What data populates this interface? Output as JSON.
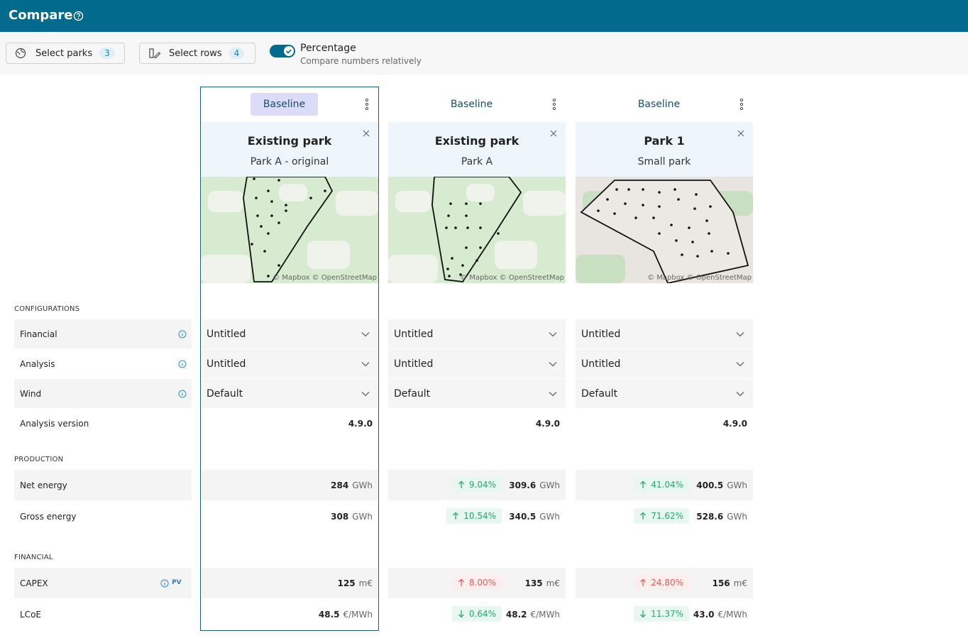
{
  "header": {
    "title": "Compare"
  },
  "toolbar": {
    "select_parks": {
      "label": "Select parks",
      "count": 3
    },
    "select_rows": {
      "label": "Select rows",
      "count": 4
    },
    "percentage": {
      "label": "Percentage",
      "description": "Compare numbers relatively",
      "on": true
    }
  },
  "map_attribution": "© Mapbox © OpenStreetMap",
  "sections": [
    {
      "title": "CONFIGURATIONS",
      "rows": [
        {
          "label": "Financial",
          "info": true
        },
        {
          "label": "Analysis",
          "info": true
        },
        {
          "label": "Wind",
          "info": true
        },
        {
          "label": "Analysis version"
        }
      ]
    },
    {
      "title": "PRODUCTION",
      "rows": [
        {
          "label": "Net energy"
        },
        {
          "label": "Gross energy"
        }
      ]
    },
    {
      "title": "FINANCIAL",
      "rows": [
        {
          "label": "CAPEX",
          "info": true,
          "tag": "PV"
        },
        {
          "label": "LCoE"
        }
      ]
    }
  ],
  "parks": [
    {
      "tag": "Baseline",
      "selected": true,
      "name": "Existing park",
      "subtitle": "Park A - original",
      "cells": [
        [
          {
            "select": "Untitled"
          },
          {
            "select": "Untitled"
          },
          {
            "select": "Default"
          },
          {
            "value": "4.9.0"
          }
        ],
        [
          {
            "value": "284",
            "unit": "GWh"
          },
          {
            "value": "308",
            "unit": "GWh"
          }
        ],
        [
          {
            "value": "125",
            "unit": "m€"
          },
          {
            "value": "48.5",
            "unit": "€/MWh"
          }
        ]
      ]
    },
    {
      "tag": "Baseline",
      "selected": false,
      "name": "Existing park",
      "subtitle": "Park A",
      "cells": [
        [
          {
            "select": "Untitled"
          },
          {
            "select": "Untitled"
          },
          {
            "select": "Default"
          },
          {
            "value": "4.9.0"
          }
        ],
        [
          {
            "value": "309.6",
            "unit": "GWh",
            "change": "9.04%",
            "direction": "up",
            "tone": "positive"
          },
          {
            "value": "340.5",
            "unit": "GWh",
            "change": "10.54%",
            "direction": "up",
            "tone": "positive"
          }
        ],
        [
          {
            "value": "135",
            "unit": "m€",
            "change": "8.00%",
            "direction": "up",
            "tone": "negative"
          },
          {
            "value": "48.2",
            "unit": "€/MWh",
            "change": "0.64%",
            "direction": "down",
            "tone": "positive"
          }
        ]
      ]
    },
    {
      "tag": "Baseline",
      "selected": false,
      "name": "Park 1",
      "subtitle": "Small park",
      "cells": [
        [
          {
            "select": "Untitled"
          },
          {
            "select": "Untitled"
          },
          {
            "select": "Default"
          },
          {
            "value": "4.9.0"
          }
        ],
        [
          {
            "value": "400.5",
            "unit": "GWh",
            "change": "41.04%",
            "direction": "up",
            "tone": "positive"
          },
          {
            "value": "528.6",
            "unit": "GWh",
            "change": "71.62%",
            "direction": "up",
            "tone": "positive"
          }
        ],
        [
          {
            "value": "156",
            "unit": "m€",
            "change": "24.80%",
            "direction": "up",
            "tone": "negative"
          },
          {
            "value": "43.0",
            "unit": "€/MWh",
            "change": "11.37%",
            "direction": "down",
            "tone": "positive"
          }
        ]
      ]
    }
  ]
}
